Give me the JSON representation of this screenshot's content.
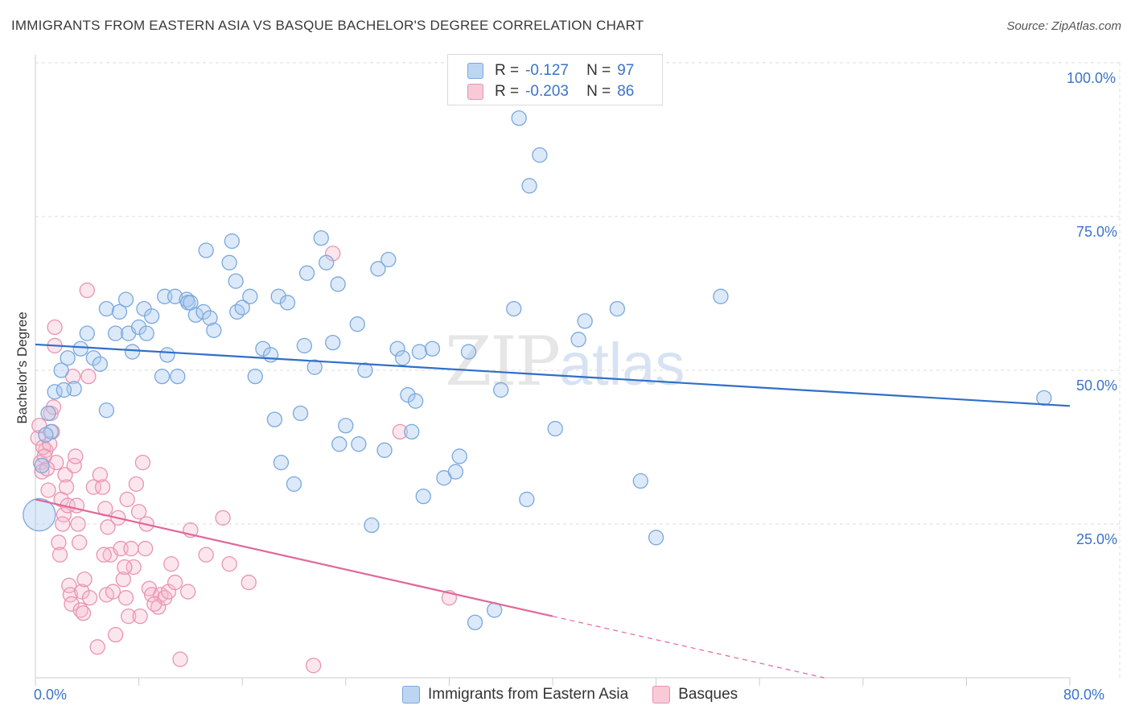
{
  "header": {
    "title": "IMMIGRANTS FROM EASTERN ASIA VS BASQUE BACHELOR'S DEGREE CORRELATION CHART",
    "source": "Source: ZipAtlas.com"
  },
  "watermark": {
    "zip": "ZIP",
    "atlas": "atlas"
  },
  "legend": {
    "rows": [
      {
        "r_label": "R =",
        "r_value": "-0.127",
        "n_label": "N =",
        "n_value": "97"
      },
      {
        "r_label": "R =",
        "r_value": "-0.203",
        "n_label": "N =",
        "n_value": "86"
      }
    ]
  },
  "bottom_legend": {
    "series1": "Immigrants from Eastern Asia",
    "series2": "Basques"
  },
  "axes": {
    "ylabel": "Bachelor's Degree",
    "x_min_label": "0.0%",
    "x_max_label": "80.0%",
    "y_ticks": [
      "100.0%",
      "75.0%",
      "50.0%",
      "25.0%"
    ]
  },
  "colors": {
    "blue_fill": "#a8c8f0",
    "blue_stroke": "#7aa8dc",
    "blue_line": "#2f6fc9",
    "pink_fill": "#f6b8cc",
    "pink_stroke": "#e894b0",
    "pink_line": "#e06898",
    "axis_text": "#3a74c9"
  },
  "chart_data": {
    "type": "scatter",
    "title": "IMMIGRANTS FROM EASTERN ASIA VS BASQUE BACHELOR'S DEGREE CORRELATION CHART",
    "xlabel": "",
    "ylabel": "Bachelor's Degree",
    "xlim": [
      0,
      80
    ],
    "ylim": [
      0,
      100
    ],
    "grid": true,
    "legend": "top-center",
    "series": [
      {
        "name": "Immigrants from Eastern Asia",
        "R": -0.127,
        "N": 97,
        "trend": {
          "x": [
            0,
            80
          ],
          "y": [
            54.2,
            44.2
          ]
        },
        "points": [
          [
            0.3,
            26.5
          ],
          [
            0.5,
            34.5
          ],
          [
            1.0,
            43
          ],
          [
            1.2,
            40
          ],
          [
            1.5,
            46.5
          ],
          [
            2.0,
            50
          ],
          [
            2.5,
            52
          ],
          [
            3.0,
            47
          ],
          [
            3.5,
            53.5
          ],
          [
            4.0,
            56
          ],
          [
            4.5,
            52
          ],
          [
            5.0,
            51
          ],
          [
            5.5,
            60
          ],
          [
            5.5,
            43.5
          ],
          [
            6.2,
            56
          ],
          [
            6.5,
            59.5
          ],
          [
            7,
            61.5
          ],
          [
            7.2,
            56
          ],
          [
            7.5,
            53
          ],
          [
            8,
            57
          ],
          [
            8.4,
            60
          ],
          [
            8.6,
            56
          ],
          [
            9,
            58.8
          ],
          [
            9.8,
            49
          ],
          [
            10,
            62
          ],
          [
            10.2,
            52.5
          ],
          [
            10.8,
            62
          ],
          [
            11,
            49
          ],
          [
            11.7,
            61.5
          ],
          [
            11.8,
            61
          ],
          [
            12,
            61
          ],
          [
            12.4,
            59
          ],
          [
            13,
            59.5
          ],
          [
            13.5,
            58.5
          ],
          [
            13.8,
            56.5
          ],
          [
            13.2,
            69.5
          ],
          [
            15,
            67.5
          ],
          [
            15.2,
            71
          ],
          [
            15.5,
            64.5
          ],
          [
            15.6,
            59.5
          ],
          [
            16,
            60.2
          ],
          [
            16.6,
            62
          ],
          [
            17,
            49
          ],
          [
            17.6,
            53.5
          ],
          [
            18.2,
            52.5
          ],
          [
            18.5,
            42
          ],
          [
            18.8,
            62
          ],
          [
            19,
            35
          ],
          [
            19.5,
            61
          ],
          [
            20,
            31.5
          ],
          [
            20.5,
            43
          ],
          [
            20.8,
            54
          ],
          [
            21,
            65.8
          ],
          [
            21.6,
            50.5
          ],
          [
            22.1,
            71.5
          ],
          [
            22.5,
            67.5
          ],
          [
            23,
            54.5
          ],
          [
            23.4,
            64
          ],
          [
            23.5,
            38
          ],
          [
            24,
            41
          ],
          [
            24.9,
            57.5
          ],
          [
            25,
            38
          ],
          [
            25.5,
            50
          ],
          [
            26,
            24.8
          ],
          [
            26.5,
            66.5
          ],
          [
            27,
            37
          ],
          [
            27.3,
            68
          ],
          [
            28,
            53.5
          ],
          [
            28.4,
            52
          ],
          [
            28.8,
            46
          ],
          [
            29.1,
            40
          ],
          [
            29.4,
            45
          ],
          [
            29.7,
            53
          ],
          [
            30,
            29.5
          ],
          [
            30.7,
            53.5
          ],
          [
            31.6,
            32.5
          ],
          [
            32.5,
            33.5
          ],
          [
            32.8,
            36
          ],
          [
            33.5,
            53
          ],
          [
            34,
            9
          ],
          [
            35.5,
            11
          ],
          [
            36,
            46.8
          ],
          [
            37,
            60
          ],
          [
            37.4,
            91
          ],
          [
            38,
            29
          ],
          [
            38.2,
            80
          ],
          [
            39,
            85
          ],
          [
            40.2,
            40.5
          ],
          [
            42,
            55
          ],
          [
            42.5,
            58
          ],
          [
            45,
            60
          ],
          [
            46.8,
            32
          ],
          [
            48,
            22.8
          ],
          [
            53,
            62
          ],
          [
            78,
            45.5
          ],
          [
            0.8,
            39.5
          ],
          [
            2.2,
            46.8
          ]
        ]
      },
      {
        "name": "Basques",
        "R": -0.203,
        "N": 86,
        "trend": {
          "x": [
            0,
            40
          ],
          "y": [
            29,
            10
          ]
        },
        "trend_dashed": {
          "x": [
            40,
            61
          ],
          "y": [
            10,
            0
          ]
        },
        "points": [
          [
            0.2,
            39
          ],
          [
            0.4,
            35
          ],
          [
            0.5,
            33.5
          ],
          [
            0.8,
            37
          ],
          [
            1.0,
            30.5
          ],
          [
            1.2,
            43
          ],
          [
            1.3,
            40
          ],
          [
            1.5,
            57
          ],
          [
            1.5,
            54
          ],
          [
            1.6,
            35
          ],
          [
            1.8,
            22
          ],
          [
            1.9,
            20
          ],
          [
            2.0,
            29
          ],
          [
            2.2,
            26.5
          ],
          [
            2.3,
            33
          ],
          [
            2.5,
            28
          ],
          [
            2.6,
            15
          ],
          [
            2.7,
            13.5
          ],
          [
            2.8,
            12
          ],
          [
            3.0,
            34.5
          ],
          [
            3.1,
            36
          ],
          [
            3.2,
            28
          ],
          [
            3.3,
            25
          ],
          [
            3.5,
            11
          ],
          [
            3.6,
            14
          ],
          [
            3.8,
            16
          ],
          [
            4.0,
            63
          ],
          [
            4.1,
            49
          ],
          [
            4.2,
            13
          ],
          [
            4.5,
            31
          ],
          [
            4.8,
            5
          ],
          [
            5.0,
            33
          ],
          [
            5.2,
            31
          ],
          [
            5.4,
            27.5
          ],
          [
            5.5,
            13.5
          ],
          [
            5.6,
            24.5
          ],
          [
            5.8,
            20
          ],
          [
            6.0,
            14
          ],
          [
            6.2,
            7
          ],
          [
            6.4,
            26
          ],
          [
            6.6,
            21
          ],
          [
            6.8,
            16
          ],
          [
            7.0,
            13
          ],
          [
            7.1,
            29
          ],
          [
            7.2,
            10
          ],
          [
            7.4,
            21
          ],
          [
            7.6,
            18
          ],
          [
            7.8,
            31.5
          ],
          [
            8.0,
            27
          ],
          [
            8.1,
            10
          ],
          [
            8.3,
            35
          ],
          [
            8.5,
            21
          ],
          [
            8.8,
            14.5
          ],
          [
            9.0,
            13.5
          ],
          [
            9.5,
            11.5
          ],
          [
            9.7,
            13.5
          ],
          [
            10.0,
            13
          ],
          [
            10.3,
            14
          ],
          [
            10.5,
            18.5
          ],
          [
            10.8,
            15.5
          ],
          [
            11.2,
            3
          ],
          [
            12.0,
            24
          ],
          [
            13.2,
            20
          ],
          [
            14.5,
            26
          ],
          [
            15.0,
            18.5
          ],
          [
            16.5,
            15.5
          ],
          [
            21.5,
            2
          ],
          [
            23.0,
            69
          ],
          [
            28.2,
            40
          ],
          [
            32.0,
            13
          ],
          [
            0.3,
            41
          ],
          [
            0.6,
            37.5
          ],
          [
            0.9,
            34
          ],
          [
            1.1,
            38
          ],
          [
            1.4,
            44
          ],
          [
            2.1,
            25
          ],
          [
            2.4,
            31
          ],
          [
            2.9,
            49
          ],
          [
            3.4,
            22
          ],
          [
            3.7,
            10.5
          ],
          [
            5.3,
            20
          ],
          [
            6.9,
            18
          ],
          [
            8.6,
            25
          ],
          [
            9.2,
            12
          ],
          [
            11.8,
            14
          ],
          [
            0.7,
            36
          ]
        ]
      }
    ]
  }
}
